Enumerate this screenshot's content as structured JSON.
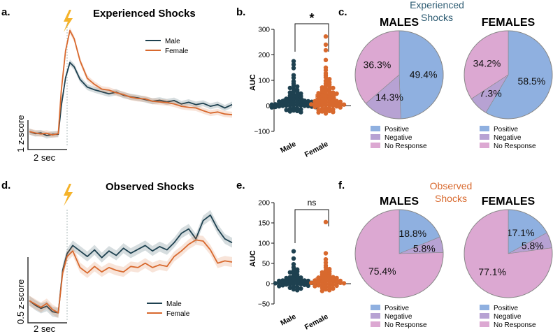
{
  "colors": {
    "male": "#1e4150",
    "female": "#d8692e",
    "positive": "#8fb0e0",
    "negative": "#b7a2d3",
    "no_response": "#dca8d2",
    "bolt": "#f5b32a"
  },
  "panels": {
    "a": {
      "letter": "a.",
      "title": "Experienced Shocks",
      "legend": [
        "Male",
        "Female"
      ],
      "scalebar_y": "1 z-score",
      "scalebar_x": "2 sec"
    },
    "b": {
      "letter": "b.",
      "ylabel": "AUC",
      "significance": "*"
    },
    "c": {
      "letter": "c.",
      "heading": "Experienced\nShocks",
      "males_title": "MALES",
      "females_title": "FEMALES",
      "legend": [
        "Positive",
        "Negative",
        "No Response"
      ]
    },
    "d": {
      "letter": "d.",
      "title": "Observed Shocks",
      "legend": [
        "Male",
        "Female"
      ],
      "scalebar_y": "0.5 z-score",
      "scalebar_x": "2 sec"
    },
    "e": {
      "letter": "e.",
      "ylabel": "AUC",
      "significance": "ns"
    },
    "f": {
      "letter": "f.",
      "heading": "Observed\nShocks",
      "males_title": "MALES",
      "females_title": "FEMALES",
      "legend": [
        "Positive",
        "Negative",
        "No Response"
      ]
    }
  },
  "chart_data": [
    {
      "id": "a",
      "type": "line",
      "title": "Experienced Shocks",
      "x": [
        -2,
        -1.6,
        -1.2,
        -0.8,
        -0.4,
        0,
        0.2,
        0.5,
        0.8,
        1.1,
        1.5,
        2,
        2.5,
        3,
        3.5,
        4,
        4.5,
        5,
        5.5,
        6,
        6.5,
        7,
        7.5,
        8,
        8.5,
        9,
        9.5,
        10,
        10.5,
        11,
        11.5,
        12
      ],
      "ylim": [
        -0.45,
        3.2
      ],
      "series": [
        {
          "name": "Male",
          "color_key": "male",
          "values": [
            0,
            -0.06,
            -0.04,
            -0.12,
            -0.08,
            -0.08,
            0.75,
            1.6,
            2.05,
            1.92,
            1.55,
            1.32,
            1.24,
            1.18,
            1.12,
            1.17,
            1.08,
            1.03,
            1.0,
            0.95,
            0.9,
            0.93,
            0.88,
            0.92,
            0.82,
            0.87,
            0.8,
            0.84,
            0.75,
            0.8,
            0.7,
            0.8
          ]
        },
        {
          "name": "Female",
          "color_key": "female",
          "values": [
            0,
            -0.04,
            -0.07,
            -0.05,
            -0.1,
            -0.06,
            1.2,
            2.4,
            3.0,
            2.75,
            2.1,
            1.58,
            1.4,
            1.26,
            1.23,
            1.15,
            1.1,
            1.02,
            0.98,
            0.97,
            0.9,
            0.88,
            0.86,
            0.82,
            0.75,
            0.72,
            0.7,
            0.62,
            0.55,
            0.58,
            0.52,
            0.5
          ]
        }
      ]
    },
    {
      "id": "b",
      "type": "scatter",
      "ylabel": "AUC",
      "categories": [
        "Male",
        "Female"
      ],
      "yticks": [
        300,
        200,
        100,
        0,
        -100
      ],
      "ylim": [
        -100,
        300
      ],
      "series": [
        {
          "name": "Male",
          "color_key": "male",
          "values": [
            175,
            162,
            148,
            120,
            110,
            96,
            88,
            80,
            76,
            70,
            66,
            62,
            58,
            55,
            52,
            48,
            45,
            42,
            40,
            38,
            36,
            34,
            32,
            30,
            28,
            26,
            25,
            24,
            22,
            21,
            20,
            19,
            18,
            17,
            16,
            15,
            14,
            13,
            12,
            11,
            10,
            9,
            8,
            8,
            7,
            6,
            5,
            5,
            4,
            3,
            2,
            2,
            1,
            0,
            0,
            -1,
            -2,
            -3,
            -4,
            -5,
            -6,
            -8,
            -10,
            -12,
            -14,
            -16,
            -18,
            -20,
            -22,
            -25
          ]
        },
        {
          "name": "Female",
          "color_key": "female",
          "values": [
            272,
            240,
            218,
            180,
            150,
            140,
            128,
            120,
            112,
            105,
            98,
            92,
            88,
            84,
            80,
            76,
            72,
            70,
            66,
            64,
            62,
            58,
            56,
            54,
            52,
            50,
            48,
            46,
            44,
            42,
            40,
            38,
            36,
            34,
            32,
            30,
            28,
            26,
            25,
            24,
            22,
            20,
            19,
            18,
            16,
            15,
            14,
            12,
            11,
            10,
            9,
            8,
            7,
            6,
            5,
            4,
            3,
            2,
            1,
            0,
            -2,
            -4,
            -6,
            -8,
            -10,
            -12,
            -14,
            -16,
            -18,
            -20,
            -22,
            -24,
            -26,
            -30
          ]
        }
      ]
    },
    {
      "id": "c",
      "type": "pie",
      "title": "Experienced Shocks",
      "pies": [
        {
          "title": "MALES",
          "labels": [
            "Positive",
            "Negative",
            "No Response"
          ],
          "values": [
            49.4,
            14.3,
            36.3
          ],
          "value_labels": [
            "49.4%",
            "14.3%",
            "36.3%"
          ]
        },
        {
          "title": "FEMALES",
          "labels": [
            "Positive",
            "Negative",
            "No Response"
          ],
          "values": [
            58.5,
            7.3,
            34.2
          ],
          "value_labels": [
            "58.5%",
            "7.3%",
            "34.2%"
          ]
        }
      ]
    },
    {
      "id": "d",
      "type": "line",
      "title": "Observed Shocks",
      "x": [
        -2,
        -1.6,
        -1.2,
        -0.8,
        -0.4,
        0,
        0.3,
        0.6,
        1,
        1.5,
        2,
        2.5,
        3,
        3.5,
        4,
        4.5,
        5,
        5.5,
        6,
        6.5,
        7,
        7.5,
        8,
        8.5,
        9,
        9.5,
        10,
        10.5,
        11,
        11.5,
        12
      ],
      "ylim": [
        -0.35,
        1.75
      ],
      "series": [
        {
          "name": "Male",
          "color_key": "male",
          "values": [
            0,
            -0.08,
            -0.14,
            -0.1,
            -0.2,
            -0.22,
            0.55,
            0.85,
            1.0,
            0.9,
            0.8,
            0.92,
            0.78,
            0.9,
            0.82,
            0.95,
            0.86,
            0.93,
            1.0,
            0.9,
            0.98,
            0.92,
            1.05,
            1.22,
            1.3,
            1.12,
            1.45,
            1.55,
            1.3,
            1.12,
            1.05
          ]
        },
        {
          "name": "Female",
          "color_key": "female",
          "values": [
            0,
            -0.06,
            -0.12,
            -0.05,
            -0.16,
            -0.22,
            0.5,
            0.8,
            0.9,
            0.6,
            0.5,
            0.62,
            0.52,
            0.6,
            0.55,
            0.52,
            0.62,
            0.6,
            0.68,
            0.6,
            0.65,
            0.62,
            0.8,
            0.9,
            1.02,
            1.1,
            1.08,
            0.92,
            0.68,
            0.72,
            0.7
          ]
        }
      ]
    },
    {
      "id": "e",
      "type": "scatter",
      "ylabel": "AUC",
      "categories": [
        "Male",
        "Female"
      ],
      "yticks": [
        200,
        150,
        100,
        50,
        0,
        -50
      ],
      "ylim": [
        -50,
        200
      ],
      "series": [
        {
          "name": "Male",
          "color_key": "male",
          "values": [
            80,
            62,
            48,
            40,
            35,
            32,
            30,
            28,
            25,
            22,
            20,
            18,
            16,
            15,
            14,
            13,
            12,
            11,
            10,
            9,
            8,
            8,
            7,
            7,
            6,
            6,
            5,
            5,
            4,
            4,
            3,
            3,
            2,
            2,
            1,
            1,
            0,
            0,
            -1,
            -1,
            -2,
            -3,
            -4,
            -5,
            -6,
            -7,
            -8,
            -10,
            -12,
            -14,
            -16
          ]
        },
        {
          "name": "Female",
          "color_key": "female",
          "values": [
            152,
            75,
            60,
            52,
            45,
            40,
            36,
            33,
            30,
            28,
            26,
            24,
            22,
            20,
            18,
            17,
            16,
            15,
            14,
            13,
            12,
            11,
            10,
            9,
            8,
            8,
            7,
            6,
            6,
            5,
            5,
            4,
            4,
            3,
            2,
            2,
            1,
            0,
            -1,
            -2,
            -3,
            -4,
            -5,
            -6,
            -7,
            -8,
            -10,
            -12,
            -14,
            -16,
            -18
          ]
        }
      ]
    },
    {
      "id": "f",
      "type": "pie",
      "title": "Observed Shocks",
      "pies": [
        {
          "title": "MALES",
          "labels": [
            "Positive",
            "Negative",
            "No Response"
          ],
          "values": [
            18.8,
            5.8,
            75.4
          ],
          "value_labels": [
            "18.8%",
            "5.8%",
            "75.4%"
          ]
        },
        {
          "title": "FEMALES",
          "labels": [
            "Positive",
            "Negative",
            "No Response"
          ],
          "values": [
            17.1,
            5.8,
            77.1
          ],
          "value_labels": [
            "17.1%",
            "5.8%",
            "77.1%"
          ]
        }
      ]
    }
  ]
}
